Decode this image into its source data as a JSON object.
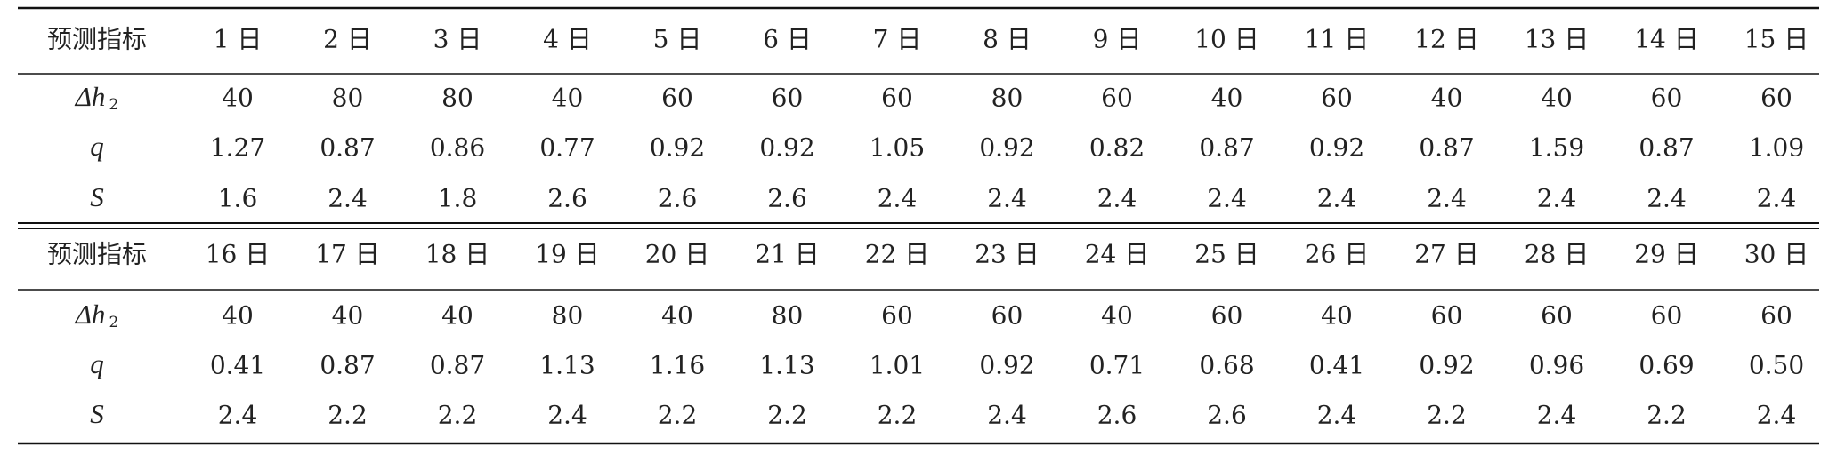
{
  "blocks": [
    {
      "header": {
        "label": "预测指标",
        "days": [
          "1 日",
          "2 日",
          "3 日",
          "4 日",
          "5 日",
          "6 日",
          "7 日",
          "8 日",
          "9 日",
          "10 日",
          "11 日",
          "12 日",
          "13 日",
          "14 日",
          "15 日"
        ]
      },
      "rows": [
        {
          "symbol": "Δh",
          "subscript": "2",
          "values": [
            "40",
            "80",
            "80",
            "40",
            "60",
            "60",
            "60",
            "80",
            "60",
            "40",
            "60",
            "40",
            "40",
            "60",
            "60"
          ]
        },
        {
          "symbol": "q",
          "values": [
            "1.27",
            "0.87",
            "0.86",
            "0.77",
            "0.92",
            "0.92",
            "1.05",
            "0.92",
            "0.82",
            "0.87",
            "0.92",
            "0.87",
            "1.59",
            "0.87",
            "1.09"
          ]
        },
        {
          "symbol": "S",
          "values": [
            "1.6",
            "2.4",
            "1.8",
            "2.6",
            "2.6",
            "2.6",
            "2.4",
            "2.4",
            "2.4",
            "2.4",
            "2.4",
            "2.4",
            "2.4",
            "2.4",
            "2.4"
          ]
        }
      ]
    },
    {
      "header": {
        "label": "预测指标",
        "days": [
          "16 日",
          "17 日",
          "18 日",
          "19 日",
          "20 日",
          "21 日",
          "22 日",
          "23 日",
          "24 日",
          "25 日",
          "26 日",
          "27 日",
          "28 日",
          "29 日",
          "30 日"
        ]
      },
      "rows": [
        {
          "symbol": "Δh",
          "subscript": "2",
          "values": [
            "40",
            "40",
            "40",
            "80",
            "40",
            "80",
            "60",
            "60",
            "40",
            "60",
            "40",
            "60",
            "60",
            "60",
            "60"
          ]
        },
        {
          "symbol": "q",
          "values": [
            "0.41",
            "0.87",
            "0.87",
            "1.13",
            "1.16",
            "1.13",
            "1.01",
            "0.92",
            "0.71",
            "0.68",
            "0.41",
            "0.92",
            "0.96",
            "0.69",
            "0.50"
          ]
        },
        {
          "symbol": "S",
          "values": [
            "2.4",
            "2.2",
            "2.2",
            "2.4",
            "2.2",
            "2.2",
            "2.2",
            "2.4",
            "2.6",
            "2.6",
            "2.4",
            "2.2",
            "2.4",
            "2.2",
            "2.4"
          ]
        }
      ]
    }
  ]
}
